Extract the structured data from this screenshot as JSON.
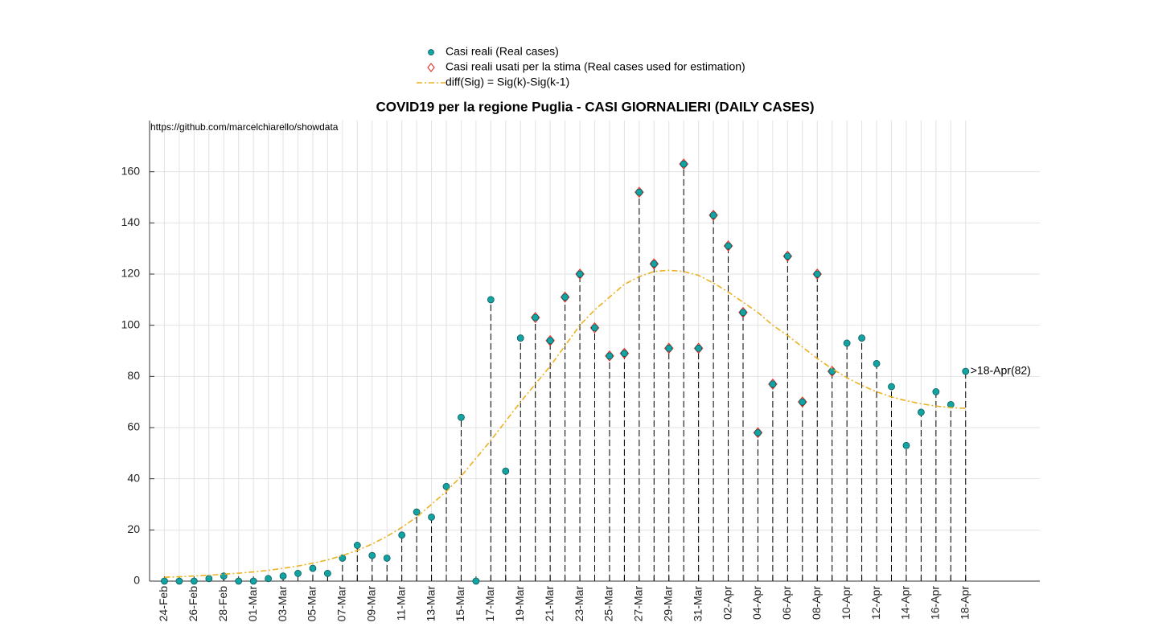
{
  "chart_data": {
    "type": "stem",
    "title": "COVID19 per la regione Puglia - CASI GIORNALIERI (DAILY CASES)",
    "source_note": "https://github.com/marcelchiarello/showdata",
    "annotation": ">18-Apr(82)",
    "categories": [
      "24-Feb",
      null,
      "26-Feb",
      null,
      "28-Feb",
      null,
      "01-Mar",
      null,
      "03-Mar",
      null,
      "05-Mar",
      null,
      "07-Mar",
      null,
      "09-Mar",
      null,
      "11-Mar",
      null,
      "13-Mar",
      null,
      "15-Mar",
      null,
      "17-Mar",
      null,
      "19-Mar",
      null,
      "21-Mar",
      null,
      "23-Mar",
      null,
      "25-Mar",
      null,
      "27-Mar",
      null,
      "29-Mar",
      null,
      "31-Mar",
      null,
      "02-Apr",
      null,
      "04-Apr",
      null,
      "06-Apr",
      null,
      "08-Apr",
      null,
      "10-Apr",
      null,
      "12-Apr",
      null,
      "14-Apr",
      null,
      "16-Apr",
      null,
      "18-Apr"
    ],
    "series": [
      {
        "name": "Casi reali (Real cases)",
        "color": "#14a3a3",
        "marker": "circle",
        "stem": true,
        "values": [
          0,
          0,
          0,
          1,
          2,
          0,
          0,
          1,
          2,
          3,
          5,
          3,
          9,
          14,
          10,
          9,
          18,
          27,
          25,
          37,
          64,
          0,
          110,
          43,
          95,
          103,
          94,
          111,
          120,
          99,
          88,
          89,
          152,
          124,
          91,
          163,
          91,
          143,
          131,
          105,
          58,
          77,
          127,
          70,
          120,
          82,
          93,
          95,
          85,
          76,
          53,
          66,
          74,
          69,
          82
        ]
      },
      {
        "name": "Casi reali usati per la stima (Real cases used for estimation)",
        "color": "#e8322a",
        "marker": "diamond",
        "stem": false,
        "values": [
          null,
          null,
          null,
          null,
          null,
          null,
          null,
          null,
          null,
          null,
          null,
          null,
          null,
          null,
          null,
          null,
          null,
          null,
          null,
          null,
          null,
          null,
          null,
          null,
          null,
          103,
          94,
          111,
          120,
          99,
          88,
          89,
          152,
          124,
          91,
          163,
          91,
          143,
          131,
          105,
          58,
          77,
          127,
          70,
          120,
          82,
          null,
          null,
          null,
          null,
          null,
          null,
          null,
          null,
          null
        ]
      },
      {
        "name": "diff(Sig) = Sig(k)-Sig(k-1)",
        "color": "#edb120",
        "marker": "none",
        "line_style": "dash-dot",
        "values": [
          1.5,
          1.7,
          2,
          2.3,
          2.7,
          3.1,
          3.6,
          4.2,
          5,
          5.9,
          7,
          8.3,
          10,
          12,
          14.5,
          17.5,
          21,
          25,
          30,
          35,
          41,
          48,
          55,
          62.5,
          70,
          77,
          84,
          92,
          100,
          106,
          111,
          116,
          119,
          121,
          121.5,
          121,
          119.5,
          116.5,
          113,
          109,
          105,
          100,
          96,
          91.5,
          87,
          83,
          79.5,
          76.5,
          74,
          72,
          70.5,
          69.3,
          68.4,
          67.8,
          67.5
        ]
      }
    ],
    "ylim": [
      0,
      180
    ],
    "yticks": [
      0,
      20,
      40,
      60,
      80,
      100,
      120,
      140,
      160
    ],
    "grid": true
  }
}
